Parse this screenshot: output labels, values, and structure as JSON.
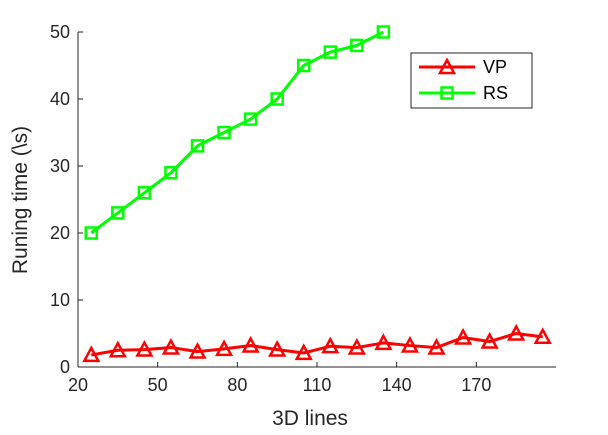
{
  "chart_data": {
    "type": "line",
    "xlabel": "3D lines",
    "ylabel": "Runing time (\\s)",
    "xlim": [
      20,
      200
    ],
    "ylim": [
      0,
      50
    ],
    "xticks": [
      20,
      50,
      80,
      110,
      140,
      170
    ],
    "yticks": [
      0,
      10,
      20,
      30,
      40,
      50
    ],
    "grid": false,
    "legend_position": "top-right",
    "series": [
      {
        "name": "VP",
        "color": "#ff0000",
        "marker": "triangle",
        "x": [
          25,
          35,
          45,
          55,
          65,
          75,
          85,
          95,
          105,
          115,
          125,
          135,
          145,
          155,
          165,
          175,
          185,
          195
        ],
        "values": [
          1.8,
          2.5,
          2.6,
          2.9,
          2.3,
          2.7,
          3.2,
          2.6,
          2.1,
          3.1,
          2.9,
          3.6,
          3.2,
          2.9,
          4.4,
          3.8,
          5.0,
          4.5
        ]
      },
      {
        "name": "RS",
        "color": "#00ff00",
        "marker": "square",
        "x": [
          25,
          35,
          45,
          55,
          65,
          75,
          85,
          95,
          105,
          115,
          125,
          135
        ],
        "values": [
          20,
          23,
          26,
          29,
          33,
          35,
          37,
          40,
          45,
          47,
          48,
          50
        ]
      }
    ]
  }
}
